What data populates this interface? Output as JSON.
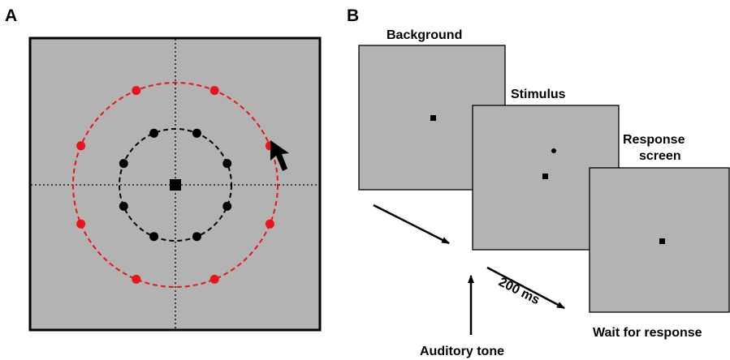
{
  "panels": {
    "a": {
      "label": "A"
    },
    "b": {
      "label": "B"
    }
  },
  "colors": {
    "background_gray": "#b3b3b3",
    "inner_ring": "#000000",
    "outer_ring": "#e8141b",
    "frame": "#000000"
  },
  "panel_a": {
    "inner_ring_dot_count": 8,
    "outer_ring_dot_count": 8,
    "cursor": "arrow-cursor-icon"
  },
  "panel_b": {
    "screens": {
      "background": {
        "title": "Background"
      },
      "stimulus": {
        "title": "Stimulus"
      },
      "response": {
        "title_line1": "Response",
        "title_line2": "screen"
      }
    },
    "labels": {
      "tone": "Auditory tone",
      "delay": "200 ms",
      "wait": "Wait for response"
    }
  }
}
